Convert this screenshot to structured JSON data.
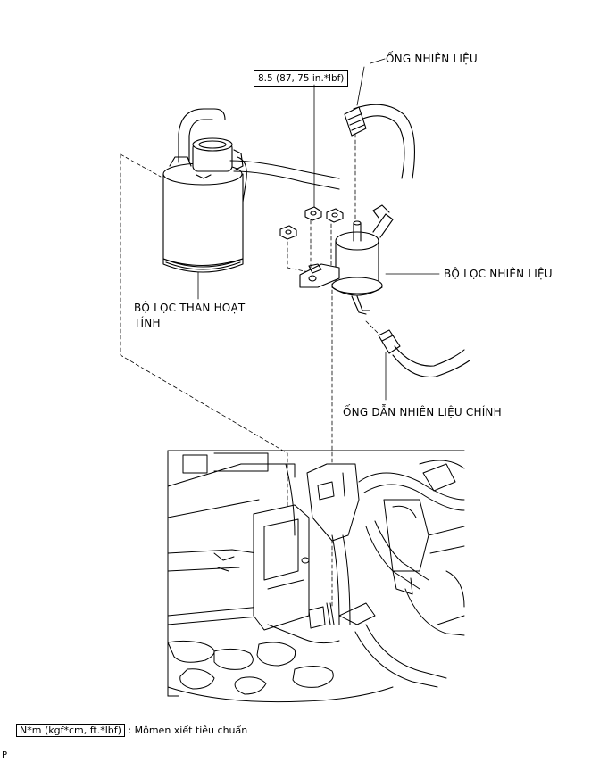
{
  "labels": {
    "fuel_hose": "ỐNG NHIÊN LIỆU",
    "fuel_filter": "BỘ LỌC NHIÊN LIỆU",
    "charcoal_canister_line1": "BỘ LỌC THAN HOẠT",
    "charcoal_canister_line2": "TÍNH",
    "main_fuel_line": "ỐNG DẪN NHIÊN LIỆU CHÍNH"
  },
  "torque_spec": "8.5 (87, 75 in.*lbf)",
  "legend": {
    "unit_box": "N*m (kgf*cm, ft.*lbf)",
    "description": ": Mômen xiết tiêu chuẩn"
  },
  "footer_mark": "P"
}
